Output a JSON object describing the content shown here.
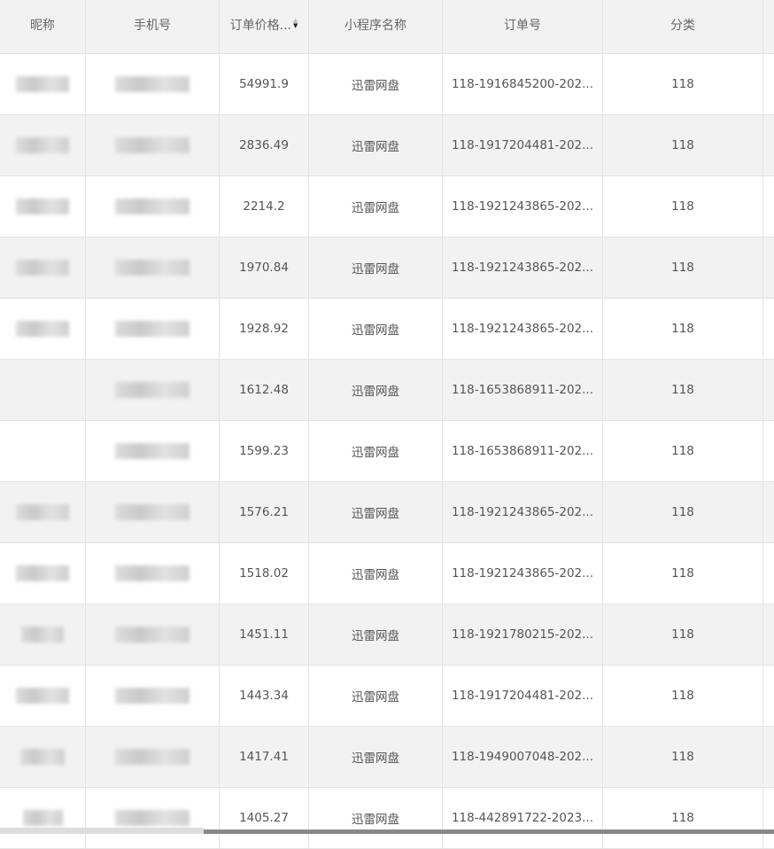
{
  "columns": [
    "昵称",
    "手机号",
    "订单价格...",
    "小程序名称",
    "订单号",
    "分类"
  ],
  "sort_state": "descending",
  "rows": [
    {
      "price": "54991.9",
      "app": "迅雷网盘",
      "order": "118-1916845200-202...",
      "category": "118"
    },
    {
      "price": "2836.49",
      "app": "迅雷网盘",
      "order": "118-1917204481-202...",
      "category": "118"
    },
    {
      "price": "2214.2",
      "app": "迅雷网盘",
      "order": "118-1921243865-202...",
      "category": "118"
    },
    {
      "price": "1970.84",
      "app": "迅雷网盘",
      "order": "118-1921243865-202...",
      "category": "118"
    },
    {
      "price": "1928.92",
      "app": "迅雷网盘",
      "order": "118-1921243865-202...",
      "category": "118"
    },
    {
      "price": "1612.48",
      "app": "迅雷网盘",
      "order": "118-1653868911-202...",
      "category": "118"
    },
    {
      "price": "1599.23",
      "app": "迅雷网盘",
      "order": "118-1653868911-202...",
      "category": "118"
    },
    {
      "price": "1576.21",
      "app": "迅雷网盘",
      "order": "118-1921243865-202...",
      "category": "118"
    },
    {
      "price": "1518.02",
      "app": "迅雷网盘",
      "order": "118-1921243865-202...",
      "category": "118"
    },
    {
      "price": "1451.11",
      "app": "迅雷网盘",
      "order": "118-1921780215-202...",
      "category": "118"
    },
    {
      "price": "1443.34",
      "app": "迅雷网盘",
      "order": "118-1917204481-202...",
      "category": "118"
    },
    {
      "price": "1417.41",
      "app": "迅雷网盘",
      "order": "118-1949007048-202...",
      "category": "118"
    },
    {
      "price": "1405.27",
      "app": "迅雷网盘",
      "order": "118-442891722-2023...",
      "category": "118"
    }
  ]
}
